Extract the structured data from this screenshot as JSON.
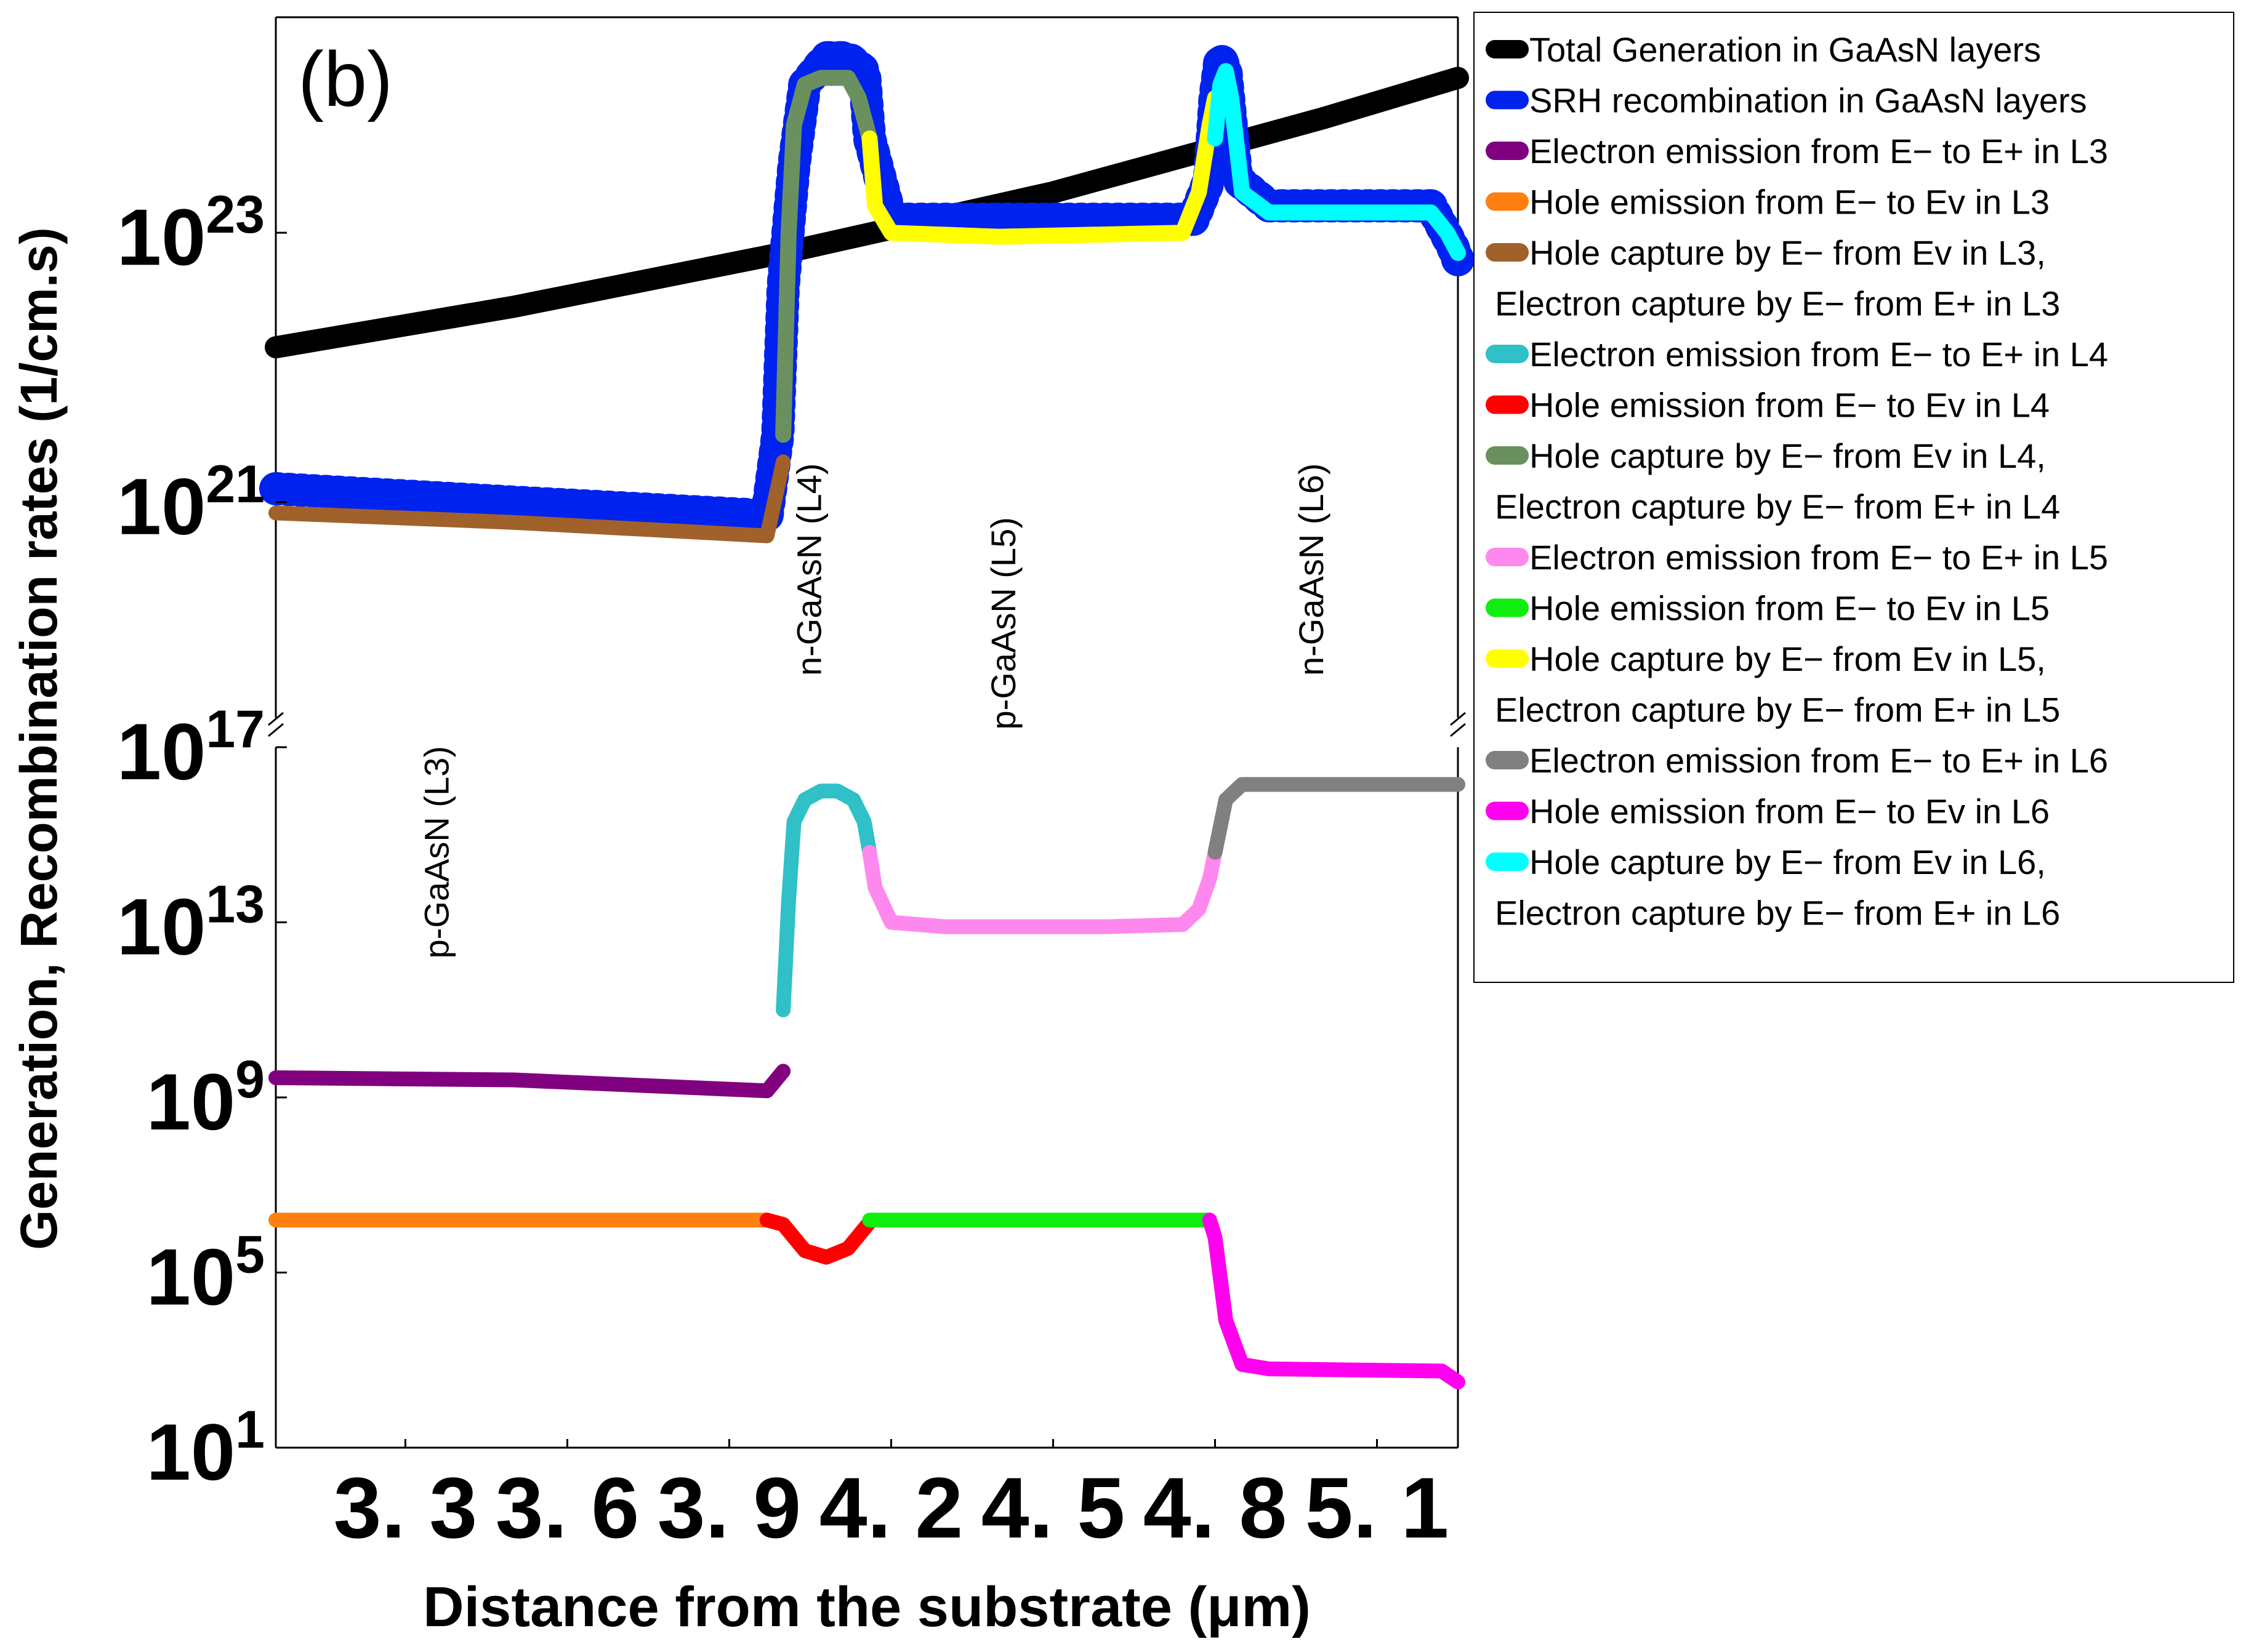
{
  "chart_data": {
    "type": "line",
    "panel_label": "(b)",
    "xlabel": "Distance from the substrate (μm)",
    "ylabel": "Generation, Recombination rates (1/cm.s)",
    "x_range": [
      3.06,
      5.25
    ],
    "x_ticks": [
      3.3,
      3.6,
      3.9,
      4.2,
      4.5,
      4.8,
      5.1
    ],
    "x_tick_labels": [
      "3. 3",
      "3. 6",
      "3. 9",
      "4. 2",
      "4. 5",
      "4. 8",
      "5. 1"
    ],
    "y_scale": "log, broken axis",
    "y_lower_range_log10": [
      1,
      17
    ],
    "y_upper_range_log10": [
      19.4,
      24.6
    ],
    "y_ticks": [
      {
        "base": "10",
        "exp": "1",
        "log10": 1
      },
      {
        "base": "10",
        "exp": "5",
        "log10": 5
      },
      {
        "base": "10",
        "exp": "9",
        "log10": 9
      },
      {
        "base": "10",
        "exp": "13",
        "log10": 13
      },
      {
        "base": "10",
        "exp": "17",
        "log10": 17
      },
      {
        "base": "10",
        "exp": "21",
        "log10": 21
      },
      {
        "base": "10",
        "exp": "23",
        "log10": 23
      }
    ],
    "region_labels": [
      {
        "text": "p-GaAsN (L3)",
        "x": 3.38,
        "log10": 14.6
      },
      {
        "text": "n-GaAsN (L4)",
        "x": 4.07,
        "log10": 20.5
      },
      {
        "text": "p-GaAsN (L5)",
        "x": 4.43,
        "log10": 20.1
      },
      {
        "text": "n-GaAsN (L6)",
        "x": 5.0,
        "log10": 20.5
      }
    ],
    "series": [
      {
        "name": "Total Generation in GaAsN layers",
        "color": "#000000",
        "marker": "square",
        "x": [
          3.06,
          3.5,
          4.0,
          4.5,
          5.0,
          5.25
        ],
        "log10": [
          22.15,
          22.45,
          22.85,
          23.3,
          23.85,
          24.15
        ]
      },
      {
        "name": "SRH recombination in GaAsN layers",
        "color": "#0022ee",
        "marker": "triangle",
        "x": [
          3.06,
          3.5,
          3.97,
          3.99,
          4.0,
          4.02,
          4.04,
          4.08,
          4.12,
          4.15,
          4.16,
          4.2,
          4.4,
          4.76,
          4.79,
          4.8,
          4.81,
          4.82,
          4.84,
          4.9,
          5.2,
          5.24,
          5.25
        ],
        "log10": [
          21.1,
          21.0,
          20.9,
          21.5,
          22.6,
          23.5,
          24.1,
          24.3,
          24.3,
          24.2,
          23.7,
          23.1,
          23.1,
          23.1,
          23.4,
          24.0,
          24.3,
          24.2,
          23.4,
          23.2,
          23.2,
          22.9,
          22.8
        ]
      },
      {
        "name": "Electron emission from E− to E+ in L3",
        "color": "#800080",
        "x": [
          3.06,
          3.5,
          3.97,
          4.0
        ],
        "log10": [
          9.45,
          9.4,
          9.15,
          9.6
        ]
      },
      {
        "name": "Hole emission from E− to Ev in L3",
        "color": "#ff8010",
        "x": [
          3.06,
          3.97
        ],
        "log10": [
          6.2,
          6.2
        ]
      },
      {
        "name": "Hole capture by E− from Ev in L3,\nElectron capture by E− from E+ in L3",
        "color": "#a0622a",
        "x": [
          3.06,
          3.5,
          3.97,
          4.0
        ],
        "log10": [
          20.92,
          20.85,
          20.75,
          21.3
        ]
      },
      {
        "name": "Electron emission from E− to E+ in L4",
        "color": "#30c0c8",
        "x": [
          4.0,
          4.01,
          4.02,
          4.04,
          4.07,
          4.1,
          4.13,
          4.15,
          4.16
        ],
        "log10": [
          11.0,
          13.5,
          15.3,
          15.8,
          16.0,
          16.0,
          15.8,
          15.3,
          14.6
        ]
      },
      {
        "name": "Hole emission from E− to Ev in L4",
        "color": "#ff0000",
        "x": [
          3.97,
          4.0,
          4.04,
          4.08,
          4.12,
          4.16
        ],
        "log10": [
          6.2,
          6.1,
          5.5,
          5.35,
          5.55,
          6.15
        ]
      },
      {
        "name": "Hole capture by E− from Ev in L4,\nElectron capture by E− from E+ in L4",
        "color": "#6a9060",
        "x": [
          4.0,
          4.01,
          4.02,
          4.04,
          4.07,
          4.12,
          4.14,
          4.16
        ],
        "log10": [
          21.5,
          23.0,
          23.8,
          24.1,
          24.15,
          24.15,
          24.0,
          23.7
        ]
      },
      {
        "name": "Electron emission from E− to E+ in L5",
        "color": "#ff88ee",
        "x": [
          4.16,
          4.17,
          4.2,
          4.3,
          4.6,
          4.74,
          4.77,
          4.79,
          4.8
        ],
        "log10": [
          14.6,
          13.8,
          13.0,
          12.9,
          12.9,
          12.95,
          13.3,
          14.0,
          14.6
        ]
      },
      {
        "name": "Hole emission from E− to Ev in L5",
        "color": "#10ee10",
        "x": [
          4.16,
          4.79
        ],
        "log10": [
          6.2,
          6.2
        ]
      },
      {
        "name": "Hole capture by E− from Ev in L5,\nElectron capture by E− from E+ in L5",
        "color": "#ffff00",
        "x": [
          4.16,
          4.17,
          4.2,
          4.4,
          4.74,
          4.77,
          4.79,
          4.8
        ],
        "log10": [
          23.7,
          23.2,
          23.0,
          22.97,
          23.0,
          23.3,
          23.8,
          24.0
        ]
      },
      {
        "name": "Electron emission from E− to E+ in L6",
        "color": "#808080",
        "x": [
          4.8,
          4.82,
          4.85,
          5.25
        ],
        "log10": [
          14.6,
          15.8,
          16.15,
          16.15
        ]
      },
      {
        "name": "Hole emission from E− to Ev in L6",
        "color": "#ff00ee",
        "x": [
          4.79,
          4.8,
          4.82,
          4.85,
          4.9,
          5.22,
          5.25
        ],
        "log10": [
          6.2,
          5.8,
          3.9,
          2.9,
          2.8,
          2.75,
          2.5
        ]
      },
      {
        "name": "Hole capture by E− from Ev in L6,\nElectron capture by E− from E+ in L6",
        "color": "#00ffff",
        "x": [
          4.8,
          4.81,
          4.82,
          4.83,
          4.85,
          4.9,
          5.2,
          5.23,
          5.25
        ],
        "log10": [
          23.7,
          24.1,
          24.2,
          24.0,
          23.3,
          23.15,
          23.15,
          23.0,
          22.85
        ]
      }
    ],
    "legend_position": "right",
    "grid": false
  }
}
